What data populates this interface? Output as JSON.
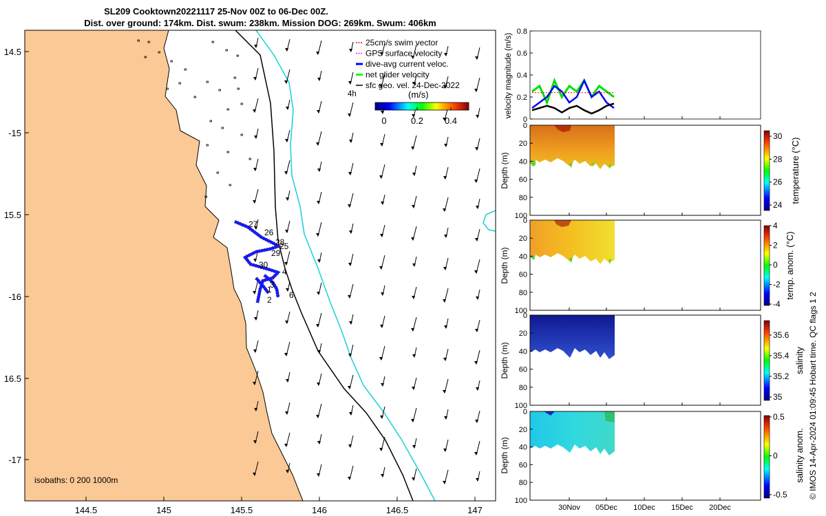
{
  "title": {
    "line1": "SL209 Cooktown20221117 25-Nov 00Z to 06-Dec 00Z.",
    "line2": "Dist. over ground: 174km. Dist. swum: 238km. Mission DOG: 269km. Swum: 406km"
  },
  "map": {
    "lon_ticks": [
      "144.5",
      "145",
      "145.5",
      "146",
      "146.5",
      "147"
    ],
    "lat_ticks": [
      "14.5",
      "-15",
      "15.5",
      "-16",
      "16.5",
      "-17"
    ],
    "legend": {
      "items": [
        {
          "label": "25cm/s swim vector",
          "color": "#ff0000"
        },
        {
          "label": "GPS surface velocity",
          "color": "#ff00ff"
        },
        {
          "label": "dive-avg current veloc.",
          "color": "#0000ff"
        },
        {
          "label": "net glider velocity",
          "color": "#00ff00"
        },
        {
          "label": "sfc geo. vel. 24-Dec-2022",
          "color": "#000000"
        }
      ],
      "scale_label": "4h",
      "colorbar_unit": "(m/s)",
      "colorbar_ticks": [
        "0",
        "0.2",
        "0.4"
      ]
    },
    "isobaths_label": "isobaths: 0   200  1000m",
    "day_labels": [
      "27",
      "26",
      "28",
      "25",
      "29",
      "30",
      "4",
      "3",
      "1",
      "2",
      "6"
    ],
    "land_color": "#fbc995",
    "isobath_200_color": "#000000",
    "isobath_1000_color": "#22d3d8"
  },
  "panels": {
    "velocity": {
      "ylabel": "velocity magnitude (m/s)",
      "yticks": [
        "0",
        "0.2",
        "0.4",
        "0.6",
        "0.8"
      ]
    },
    "temperature": {
      "ylabel": "Depth (m)",
      "yticks": [
        "0",
        "20",
        "40",
        "60",
        "80",
        "100"
      ],
      "cbar_label": "temperature (°C)",
      "cbar_ticks": [
        "30",
        "28",
        "26",
        "24"
      ]
    },
    "temp_anom": {
      "ylabel": "Depth (m)",
      "yticks": [
        "0",
        "20",
        "40",
        "60",
        "80",
        "100"
      ],
      "cbar_label": "temp. anom. (°C)",
      "cbar_ticks": [
        "4",
        "2",
        "0",
        "-2",
        "-4"
      ]
    },
    "salinity": {
      "ylabel": "Depth (m)",
      "yticks": [
        "0",
        "20",
        "40",
        "60",
        "80",
        "100"
      ],
      "cbar_label": "salinity",
      "cbar_ticks": [
        "35.6",
        "35.4",
        "35.2",
        "35"
      ]
    },
    "sal_anom": {
      "ylabel": "Depth (m)",
      "yticks": [
        "0",
        "20",
        "40",
        "60",
        "80",
        "100"
      ],
      "cbar_label": "salinity anom.",
      "cbar_ticks": [
        "0.5",
        "0",
        "-0.5"
      ]
    },
    "xticks": [
      "30Nov",
      "05Dec",
      "10Dec",
      "15Dec",
      "20Dec"
    ]
  },
  "credit": "© IMOS 14-Apr-2024 01:09:45 Hobart time. QC flags 1  2",
  "chart_data": {
    "type": "line",
    "x": [
      "25Nov",
      "26Nov",
      "27Nov",
      "28Nov",
      "29Nov",
      "30Nov",
      "01Dec",
      "02Dec",
      "03Dec",
      "04Dec",
      "05Dec",
      "06Dec"
    ],
    "series": [
      {
        "name": "net glider velocity",
        "values": [
          0.25,
          0.3,
          0.15,
          0.35,
          0.2,
          0.3,
          0.25,
          0.35,
          0.2,
          0.3,
          0.25,
          0.2
        ]
      },
      {
        "name": "dive-avg current veloc.",
        "values": [
          0.1,
          0.15,
          0.2,
          0.3,
          0.25,
          0.15,
          0.2,
          0.35,
          0.2,
          0.25,
          0.15,
          0.1
        ]
      },
      {
        "name": "GPS surface velocity",
        "values": [
          0.24,
          0.24,
          0.24,
          0.24,
          0.24,
          0.24,
          0.24,
          0.24,
          0.24,
          0.24,
          0.24,
          0.24
        ]
      },
      {
        "values": [
          0.08,
          0.1,
          0.12,
          0.1,
          0.06,
          0.1,
          0.12,
          0.08,
          0.05,
          0.08,
          0.12,
          0.14
        ]
      }
    ],
    "ylim": [
      0,
      0.8
    ]
  }
}
